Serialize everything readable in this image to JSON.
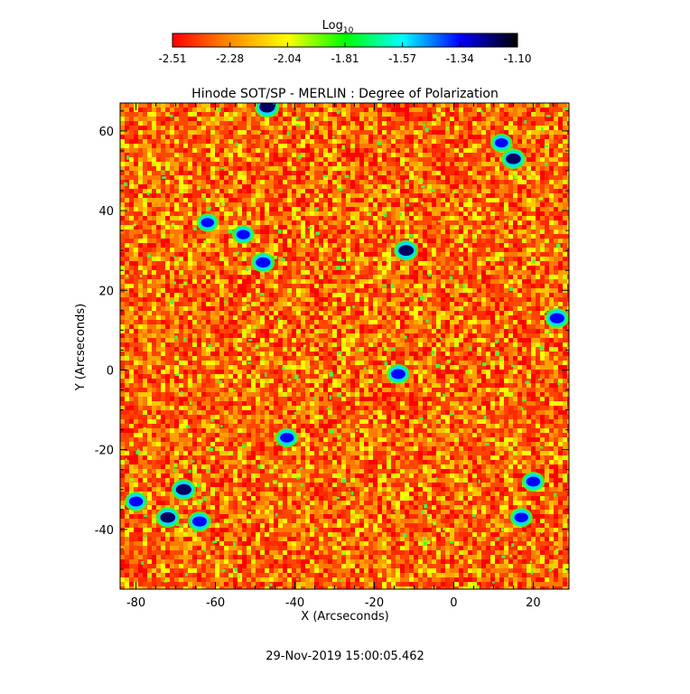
{
  "chart_data": {
    "type": "heatmap",
    "title": "Hinode SOT/SP - MERLIN : Degree of Polarization",
    "xlabel": "X (Arcseconds)",
    "ylabel": "Y (Arcseconds)",
    "xlim": [
      -84,
      29
    ],
    "ylim": [
      -55,
      67
    ],
    "x_ticks": [
      -80,
      -60,
      -40,
      -20,
      0,
      20
    ],
    "y_ticks": [
      -40,
      -20,
      0,
      20,
      40,
      60
    ],
    "colorbar": {
      "label_base": "Log",
      "label_sub": "10",
      "ticks": [
        "-2.51",
        "-2.28",
        "-2.04",
        "-1.81",
        "-1.57",
        "-1.34",
        "-1.10"
      ],
      "range": [
        -2.51,
        -1.1
      ],
      "colormap": [
        "#ff0000",
        "#ff8c00",
        "#ffff00",
        "#00ff00",
        "#00ffff",
        "#0000ff",
        "#000000"
      ]
    },
    "hotspots": [
      {
        "x": -68,
        "y": -30,
        "level": -1.2
      },
      {
        "x": -72,
        "y": -37,
        "level": -1.3
      },
      {
        "x": -64,
        "y": -38,
        "level": -1.4
      },
      {
        "x": -12,
        "y": 30,
        "level": -1.25
      },
      {
        "x": -48,
        "y": 27,
        "level": -1.35
      },
      {
        "x": 15,
        "y": 53,
        "level": -1.3
      },
      {
        "x": -47,
        "y": 66,
        "level": -1.2
      },
      {
        "x": 26,
        "y": 13,
        "level": -1.35
      },
      {
        "x": 20,
        "y": -28,
        "level": -1.45
      },
      {
        "x": -14,
        "y": -1,
        "level": -1.4
      },
      {
        "x": -42,
        "y": -17,
        "level": -1.5
      },
      {
        "x": -80,
        "y": -33,
        "level": -1.45
      },
      {
        "x": 17,
        "y": -37,
        "level": -1.5
      },
      {
        "x": -53,
        "y": 34,
        "level": -1.55
      },
      {
        "x": -62,
        "y": 37,
        "level": -1.6
      },
      {
        "x": 12,
        "y": 57,
        "level": -1.6
      }
    ]
  },
  "footer": {
    "timestamp": "29-Nov-2019 15:00:05.462"
  }
}
